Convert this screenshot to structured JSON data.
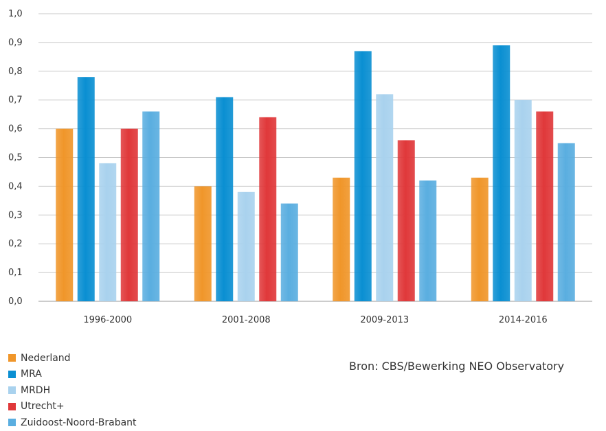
{
  "chart_data": {
    "type": "bar",
    "categories": [
      "1996-2000",
      "2001-2008",
      "2009-2013",
      "2014-2016"
    ],
    "series": [
      {
        "name": "Nederland",
        "color": "#f0962a",
        "values": [
          0.6,
          0.4,
          0.43,
          0.43
        ]
      },
      {
        "name": "MRA",
        "color": "#0a8fd2",
        "values": [
          0.78,
          0.71,
          0.87,
          0.89
        ]
      },
      {
        "name": "MRDH",
        "color": "#a9d2ee",
        "values": [
          0.48,
          0.38,
          0.72,
          0.7
        ]
      },
      {
        "name": "Utrecht+",
        "color": "#e0383a",
        "values": [
          0.6,
          0.64,
          0.56,
          0.66
        ]
      },
      {
        "name": "Zuidoost-Noord-Brabant",
        "color": "#5aaee0",
        "values": [
          0.66,
          0.34,
          0.42,
          0.55
        ]
      }
    ],
    "ylim": [
      0,
      1.0
    ],
    "yticks": [
      "0,0",
      "0,1",
      "0,2",
      "0,3",
      "0,4",
      "0,5",
      "0,6",
      "0,7",
      "0,8",
      "0,9",
      "1,0"
    ],
    "grid": true,
    "legend_position": "bottom-left",
    "source": "Bron: CBS/Bewerking NEO Observatory"
  }
}
